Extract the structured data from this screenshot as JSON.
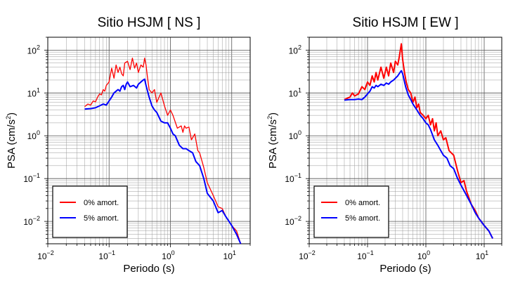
{
  "chart_data": [
    {
      "type": "line",
      "title": "Sitio HSJM [ NS ]",
      "xlabel": "Periodo (s)",
      "ylabel_main": "PSA (cm/s",
      "ylabel_sup": "2",
      "ylabel_close": ")",
      "xscale": "log",
      "yscale": "log",
      "xlim": [
        0.01,
        20
      ],
      "ylim": [
        0.003,
        200
      ],
      "grid": true,
      "legend_placement": "bottom-left",
      "series": [
        {
          "name": "0% amort.",
          "color": "#ff0000",
          "points": [
            [
              0.04,
              4.8
            ],
            [
              0.045,
              5.5
            ],
            [
              0.05,
              5.2
            ],
            [
              0.055,
              6.5
            ],
            [
              0.06,
              6.2
            ],
            [
              0.065,
              8.0
            ],
            [
              0.07,
              9.5
            ],
            [
              0.075,
              9.0
            ],
            [
              0.08,
              12
            ],
            [
              0.085,
              11
            ],
            [
              0.09,
              15
            ],
            [
              0.1,
              18
            ],
            [
              0.11,
              38
            ],
            [
              0.12,
              22
            ],
            [
              0.13,
              45
            ],
            [
              0.14,
              30
            ],
            [
              0.15,
              40
            ],
            [
              0.16,
              28
            ],
            [
              0.17,
              25
            ],
            [
              0.18,
              50
            ],
            [
              0.2,
              55
            ],
            [
              0.22,
              35
            ],
            [
              0.24,
              65
            ],
            [
              0.26,
              38
            ],
            [
              0.28,
              50
            ],
            [
              0.3,
              30
            ],
            [
              0.33,
              45
            ],
            [
              0.36,
              40
            ],
            [
              0.38,
              65
            ],
            [
              0.4,
              45
            ],
            [
              0.42,
              25
            ],
            [
              0.45,
              12
            ],
            [
              0.5,
              10
            ],
            [
              0.55,
              12
            ],
            [
              0.6,
              6
            ],
            [
              0.7,
              10
            ],
            [
              0.8,
              5
            ],
            [
              0.9,
              3
            ],
            [
              1.0,
              4
            ],
            [
              1.1,
              3
            ],
            [
              1.3,
              1.5
            ],
            [
              1.5,
              1.7
            ],
            [
              1.6,
              1.2
            ],
            [
              1.7,
              1.7
            ],
            [
              1.8,
              1.5
            ],
            [
              2.0,
              1.6
            ],
            [
              2.2,
              0.8
            ],
            [
              2.5,
              1.1
            ],
            [
              2.8,
              0.45
            ],
            [
              3.0,
              0.4
            ],
            [
              3.5,
              0.18
            ],
            [
              4.0,
              0.08
            ],
            [
              5.0,
              0.04
            ],
            [
              6.0,
              0.022
            ],
            [
              7.0,
              0.02
            ],
            [
              8.0,
              0.013
            ],
            [
              10.0,
              0.008
            ],
            [
              12.0,
              0.006
            ],
            [
              14.0,
              0.003
            ]
          ]
        },
        {
          "name": "5% amort.",
          "color": "#0000ff",
          "points": [
            [
              0.04,
              4.2
            ],
            [
              0.05,
              4.3
            ],
            [
              0.06,
              4.5
            ],
            [
              0.07,
              5.0
            ],
            [
              0.08,
              5.5
            ],
            [
              0.09,
              5.2
            ],
            [
              0.1,
              6.5
            ],
            [
              0.11,
              8.0
            ],
            [
              0.12,
              10
            ],
            [
              0.13,
              11
            ],
            [
              0.14,
              12
            ],
            [
              0.15,
              11
            ],
            [
              0.16,
              14
            ],
            [
              0.17,
              15
            ],
            [
              0.18,
              12
            ],
            [
              0.19,
              16
            ],
            [
              0.2,
              18
            ],
            [
              0.22,
              14
            ],
            [
              0.25,
              15
            ],
            [
              0.28,
              13
            ],
            [
              0.3,
              16
            ],
            [
              0.33,
              18
            ],
            [
              0.36,
              20
            ],
            [
              0.38,
              21
            ],
            [
              0.4,
              15
            ],
            [
              0.45,
              8
            ],
            [
              0.5,
              5
            ],
            [
              0.55,
              4
            ],
            [
              0.6,
              3.5
            ],
            [
              0.7,
              2.2
            ],
            [
              0.8,
              2.0
            ],
            [
              0.9,
              2.0
            ],
            [
              1.0,
              1.5
            ],
            [
              1.1,
              1.1
            ],
            [
              1.2,
              1.0
            ],
            [
              1.4,
              0.6
            ],
            [
              1.6,
              0.5
            ],
            [
              1.8,
              0.5
            ],
            [
              2.0,
              0.45
            ],
            [
              2.3,
              0.4
            ],
            [
              2.6,
              0.25
            ],
            [
              3.0,
              0.2
            ],
            [
              3.5,
              0.1
            ],
            [
              4.0,
              0.045
            ],
            [
              5.0,
              0.03
            ],
            [
              6.0,
              0.016
            ],
            [
              7.0,
              0.018
            ],
            [
              8.0,
              0.013
            ],
            [
              10.0,
              0.008
            ],
            [
              12.0,
              0.005
            ],
            [
              14.0,
              0.003
            ]
          ]
        }
      ]
    },
    {
      "type": "line",
      "title": "Sitio HSJM [ EW ]",
      "xlabel": "Periodo (s)",
      "ylabel_main": "PSA (cm/s",
      "ylabel_sup": "2",
      "ylabel_close": ")",
      "xscale": "log",
      "yscale": "log",
      "xlim": [
        0.01,
        20
      ],
      "ylim": [
        0.003,
        200
      ],
      "grid": true,
      "legend_placement": "bottom-left",
      "series": [
        {
          "name": "0% amort.",
          "color": "#ff0000",
          "points": [
            [
              0.04,
              7.0
            ],
            [
              0.045,
              7.5
            ],
            [
              0.05,
              8.0
            ],
            [
              0.055,
              10
            ],
            [
              0.06,
              8.5
            ],
            [
              0.07,
              9.5
            ],
            [
              0.08,
              14
            ],
            [
              0.09,
              12
            ],
            [
              0.1,
              18
            ],
            [
              0.11,
              15
            ],
            [
              0.12,
              25
            ],
            [
              0.13,
              18
            ],
            [
              0.14,
              30
            ],
            [
              0.15,
              20
            ],
            [
              0.17,
              40
            ],
            [
              0.19,
              22
            ],
            [
              0.21,
              40
            ],
            [
              0.23,
              25
            ],
            [
              0.25,
              50
            ],
            [
              0.28,
              30
            ],
            [
              0.3,
              55
            ],
            [
              0.33,
              45
            ],
            [
              0.35,
              70
            ],
            [
              0.38,
              140
            ],
            [
              0.4,
              60
            ],
            [
              0.43,
              30
            ],
            [
              0.46,
              18
            ],
            [
              0.5,
              12
            ],
            [
              0.55,
              10
            ],
            [
              0.6,
              6
            ],
            [
              0.65,
              8
            ],
            [
              0.7,
              4.5
            ],
            [
              0.75,
              5.5
            ],
            [
              0.8,
              3.5
            ],
            [
              0.9,
              3.0
            ],
            [
              1.0,
              2.5
            ],
            [
              1.1,
              3.0
            ],
            [
              1.2,
              1.8
            ],
            [
              1.3,
              2.5
            ],
            [
              1.4,
              1.3
            ],
            [
              1.5,
              2.0
            ],
            [
              1.6,
              1.0
            ],
            [
              1.8,
              1.3
            ],
            [
              2.0,
              0.8
            ],
            [
              2.2,
              0.9
            ],
            [
              2.5,
              0.45
            ],
            [
              3.0,
              0.35
            ],
            [
              3.5,
              0.15
            ],
            [
              4.0,
              0.08
            ],
            [
              4.5,
              0.09
            ],
            [
              5.0,
              0.05
            ],
            [
              6.0,
              0.025
            ],
            [
              7.0,
              0.018
            ],
            [
              8.0,
              0.012
            ],
            [
              10.0,
              0.008
            ],
            [
              12.0,
              0.006
            ],
            [
              14.0,
              0.004
            ]
          ]
        },
        {
          "name": "5% amort.",
          "color": "#0000ff",
          "points": [
            [
              0.04,
              6.8
            ],
            [
              0.05,
              7.0
            ],
            [
              0.06,
              7.0
            ],
            [
              0.07,
              7.2
            ],
            [
              0.08,
              7.0
            ],
            [
              0.09,
              8.0
            ],
            [
              0.1,
              9.5
            ],
            [
              0.11,
              11
            ],
            [
              0.12,
              14
            ],
            [
              0.13,
              13
            ],
            [
              0.14,
              15
            ],
            [
              0.15,
              14
            ],
            [
              0.17,
              16
            ],
            [
              0.19,
              15
            ],
            [
              0.21,
              17
            ],
            [
              0.23,
              16
            ],
            [
              0.25,
              18
            ],
            [
              0.28,
              20
            ],
            [
              0.3,
              22
            ],
            [
              0.33,
              25
            ],
            [
              0.36,
              30
            ],
            [
              0.38,
              33
            ],
            [
              0.4,
              28
            ],
            [
              0.45,
              14
            ],
            [
              0.5,
              9
            ],
            [
              0.55,
              7
            ],
            [
              0.6,
              5.5
            ],
            [
              0.7,
              4.0
            ],
            [
              0.8,
              3.0
            ],
            [
              0.9,
              2.5
            ],
            [
              1.0,
              2.0
            ],
            [
              1.1,
              1.8
            ],
            [
              1.2,
              1.4
            ],
            [
              1.4,
              0.8
            ],
            [
              1.6,
              0.6
            ],
            [
              1.8,
              0.45
            ],
            [
              2.0,
              0.35
            ],
            [
              2.3,
              0.3
            ],
            [
              2.6,
              0.2
            ],
            [
              3.0,
              0.17
            ],
            [
              3.5,
              0.1
            ],
            [
              4.0,
              0.07
            ],
            [
              5.0,
              0.04
            ],
            [
              6.0,
              0.025
            ],
            [
              7.0,
              0.016
            ],
            [
              8.0,
              0.012
            ],
            [
              10.0,
              0.008
            ],
            [
              12.0,
              0.006
            ],
            [
              14.0,
              0.004
            ]
          ]
        }
      ]
    }
  ]
}
